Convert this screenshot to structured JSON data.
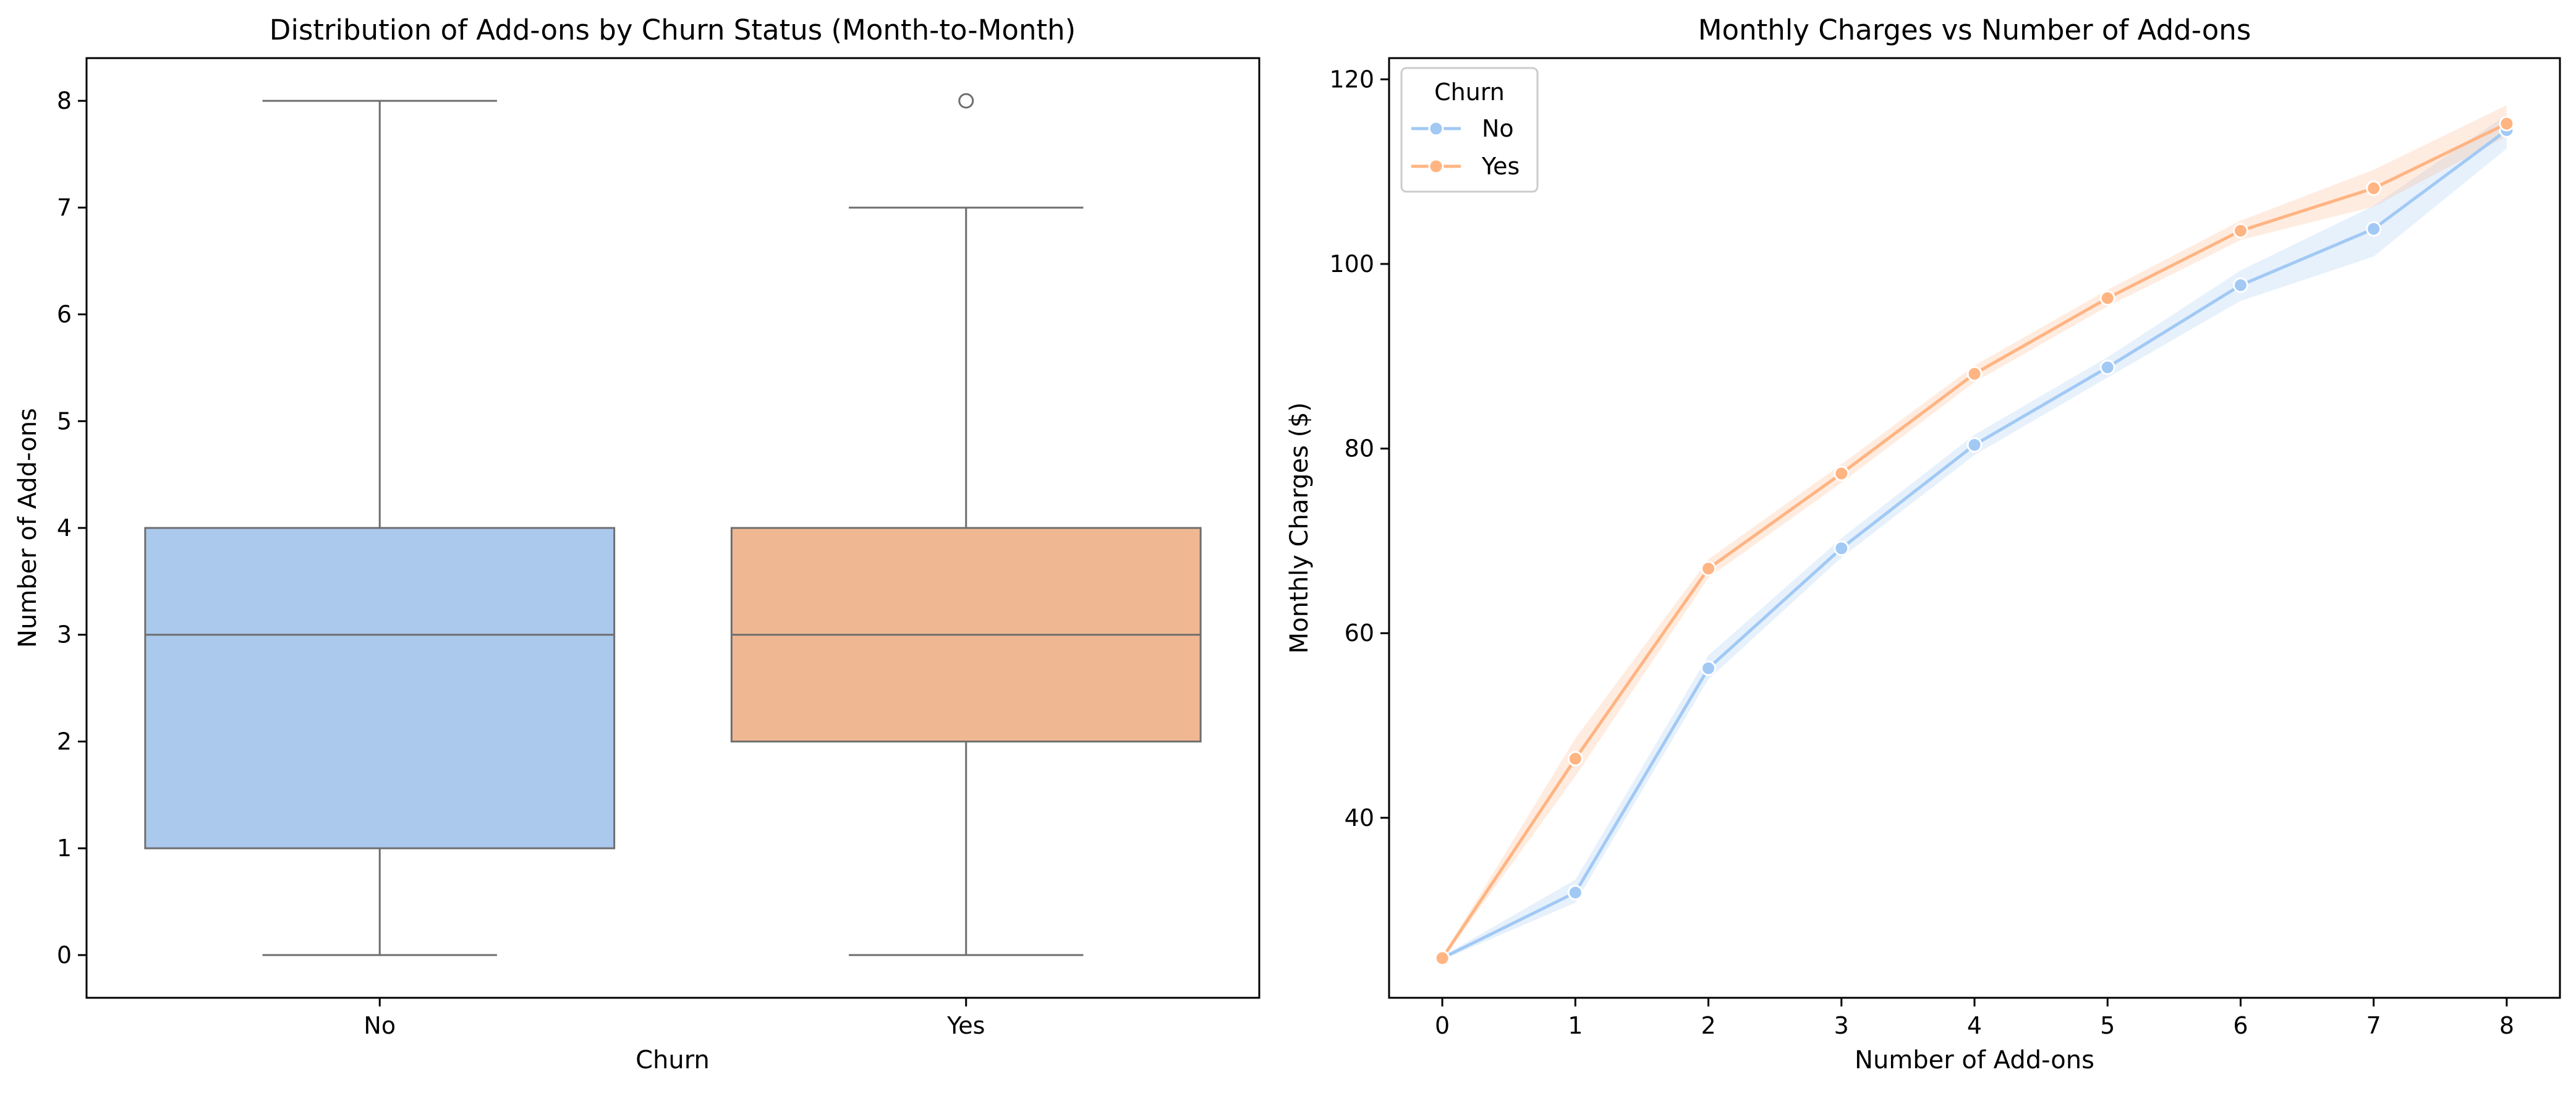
{
  "chart_data": [
    {
      "type": "box",
      "title": "Distribution of Add-ons by Churn Status (Month-to-Month)",
      "xlabel": "Churn",
      "ylabel": "Number of Add-ons",
      "categories": [
        "No",
        "Yes"
      ],
      "yticks": [
        "0",
        "1",
        "2",
        "3",
        "4",
        "5",
        "6",
        "7",
        "8"
      ],
      "ylim": [
        -0.4,
        8.4
      ],
      "grid": false,
      "boxes": [
        {
          "category": "No",
          "min": 0,
          "q1": 1,
          "median": 3,
          "q3": 4,
          "max": 8,
          "outliers": [],
          "color": "#abc9ed"
        },
        {
          "category": "Yes",
          "min": 0,
          "q1": 2,
          "median": 3,
          "q3": 4,
          "max": 7,
          "outliers": [
            8
          ],
          "color": "#f0b892"
        }
      ]
    },
    {
      "type": "line",
      "title": "Monthly Charges vs Number of Add-ons",
      "xlabel": "Number of Add-ons",
      "ylabel": "Monthly Charges ($)",
      "x": [
        0,
        1,
        2,
        3,
        4,
        5,
        6,
        7,
        8
      ],
      "xticks": [
        "0",
        "1",
        "2",
        "3",
        "4",
        "5",
        "6",
        "7",
        "8"
      ],
      "yticks": [
        "40",
        "60",
        "80",
        "100",
        "120"
      ],
      "ylim": [
        20.5,
        122.3
      ],
      "xlim": [
        -0.4,
        8.4
      ],
      "grid": false,
      "legend": {
        "title": "Churn",
        "placement": "top-left"
      },
      "series": [
        {
          "name": "No",
          "color": "#a1c9f4",
          "values": [
            24.8,
            31.9,
            56.2,
            69.2,
            80.4,
            88.8,
            97.7,
            103.8,
            114.5
          ],
          "ci_low": [
            24.6,
            30.8,
            55.0,
            68.2,
            79.3,
            87.7,
            96.0,
            100.8,
            112.5
          ],
          "ci_high": [
            25.0,
            33.3,
            57.6,
            70.3,
            81.5,
            89.9,
            99.3,
            106.3,
            116.2
          ]
        },
        {
          "name": "Yes",
          "color": "#ffb482",
          "values": [
            24.8,
            46.4,
            67.0,
            77.3,
            88.1,
            96.3,
            103.6,
            108.2,
            115.2
          ],
          "ci_low": [
            24.6,
            44.5,
            66.0,
            76.3,
            87.2,
            95.4,
            102.6,
            106.2,
            113.8
          ],
          "ci_high": [
            25.0,
            48.6,
            68.0,
            78.3,
            89.0,
            97.2,
            104.7,
            110.2,
            117.2
          ]
        }
      ]
    }
  ]
}
